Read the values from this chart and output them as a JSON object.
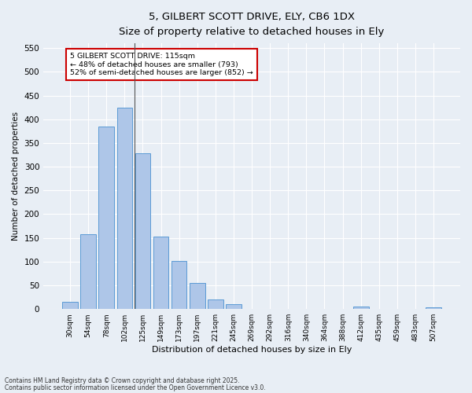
{
  "title_line1": "5, GILBERT SCOTT DRIVE, ELY, CB6 1DX",
  "title_line2": "Size of property relative to detached houses in Ely",
  "xlabel": "Distribution of detached houses by size in Ely",
  "ylabel": "Number of detached properties",
  "bar_labels": [
    "30sqm",
    "54sqm",
    "78sqm",
    "102sqm",
    "125sqm",
    "149sqm",
    "173sqm",
    "197sqm",
    "221sqm",
    "245sqm",
    "269sqm",
    "292sqm",
    "316sqm",
    "340sqm",
    "364sqm",
    "388sqm",
    "412sqm",
    "435sqm",
    "459sqm",
    "483sqm",
    "507sqm"
  ],
  "bar_values": [
    15,
    157,
    385,
    425,
    328,
    152,
    101,
    55,
    20,
    11,
    0,
    1,
    0,
    0,
    0,
    0,
    5,
    0,
    0,
    0,
    4
  ],
  "bar_color": "#aec6e8",
  "bar_edge_color": "#5b9bd5",
  "bg_color": "#e8eef5",
  "grid_color": "#ffffff",
  "ylim": [
    0,
    560
  ],
  "yticks": [
    0,
    50,
    100,
    150,
    200,
    250,
    300,
    350,
    400,
    450,
    500,
    550
  ],
  "annotation_text": "5 GILBERT SCOTT DRIVE: 115sqm\n← 48% of detached houses are smaller (793)\n52% of semi-detached houses are larger (852) →",
  "annotation_box_color": "#ffffff",
  "annotation_box_edge": "#cc0000",
  "footer_line1": "Contains HM Land Registry data © Crown copyright and database right 2025.",
  "footer_line2": "Contains public sector information licensed under the Open Government Licence v3.0."
}
